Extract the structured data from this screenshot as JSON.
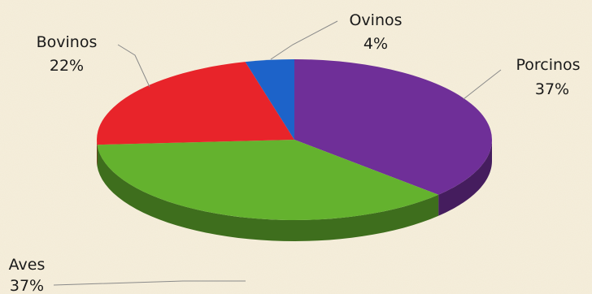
{
  "chart_data": {
    "type": "pie",
    "style": "3d",
    "start": "12 o'clock",
    "direction": "clockwise",
    "slices": [
      {
        "label": "Porcinos",
        "value": 37,
        "value_label": "37%",
        "color": "#6f2f98"
      },
      {
        "label": "Aves",
        "value": 37,
        "value_label": "37%",
        "color": "#64b22e"
      },
      {
        "label": "Bovinos",
        "value": 22,
        "value_label": "22%",
        "color": "#e8242a"
      },
      {
        "label": "Ovinos",
        "value": 4,
        "value_label": "4%",
        "color": "#1d63c9"
      }
    ]
  }
}
